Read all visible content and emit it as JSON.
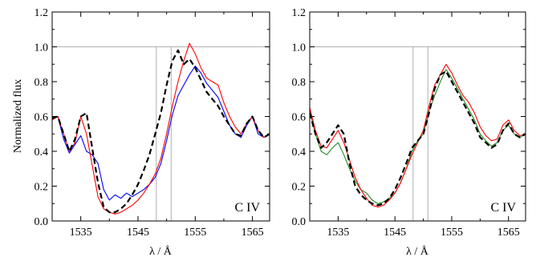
{
  "chart_data": [
    {
      "type": "line",
      "panel": "left",
      "xlabel": "λ / Å",
      "ylabel": "Normalized flux",
      "annotation": "C IV",
      "xlim": [
        1530,
        1568
      ],
      "ylim": [
        0.0,
        1.2
      ],
      "xticks": [
        1535,
        1545,
        1555,
        1565
      ],
      "yticks": [
        0.0,
        0.2,
        0.4,
        0.6,
        0.8,
        1.0,
        1.2
      ],
      "reference_line_y": 1.0,
      "vertical_lines_x": [
        1548.2,
        1550.8
      ],
      "series": [
        {
          "color": "#0000ff",
          "style": "solid",
          "x": [
            1530,
            1531,
            1532,
            1533,
            1534,
            1535,
            1536,
            1537,
            1538,
            1539,
            1540,
            1541,
            1542,
            1543,
            1544,
            1545,
            1546,
            1547,
            1548,
            1549,
            1550,
            1551,
            1552,
            1553,
            1554,
            1555,
            1556,
            1557,
            1558,
            1559,
            1560,
            1561,
            1562,
            1563,
            1564,
            1565,
            1566,
            1567,
            1568
          ],
          "y": [
            0.6,
            0.6,
            0.47,
            0.39,
            0.44,
            0.49,
            0.4,
            0.38,
            0.33,
            0.18,
            0.12,
            0.15,
            0.13,
            0.16,
            0.14,
            0.16,
            0.18,
            0.21,
            0.25,
            0.33,
            0.46,
            0.61,
            0.72,
            0.78,
            0.84,
            0.89,
            0.85,
            0.79,
            0.75,
            0.71,
            0.63,
            0.55,
            0.5,
            0.48,
            0.55,
            0.6,
            0.5,
            0.48,
            0.5
          ]
        },
        {
          "color": "#ff0000",
          "style": "solid",
          "x": [
            1530,
            1531,
            1532,
            1533,
            1534,
            1535,
            1536,
            1537,
            1538,
            1539,
            1540,
            1541,
            1542,
            1543,
            1544,
            1545,
            1546,
            1547,
            1548,
            1549,
            1550,
            1551,
            1552,
            1553,
            1554,
            1555,
            1556,
            1557,
            1558,
            1559,
            1560,
            1561,
            1562,
            1563,
            1564,
            1565,
            1566,
            1567,
            1568
          ],
          "y": [
            0.58,
            0.6,
            0.5,
            0.4,
            0.45,
            0.6,
            0.5,
            0.32,
            0.14,
            0.07,
            0.05,
            0.04,
            0.05,
            0.07,
            0.09,
            0.12,
            0.16,
            0.21,
            0.27,
            0.36,
            0.5,
            0.66,
            0.8,
            0.92,
            1.02,
            0.96,
            0.88,
            0.82,
            0.8,
            0.78,
            0.68,
            0.6,
            0.54,
            0.5,
            0.56,
            0.6,
            0.52,
            0.48,
            0.5
          ]
        },
        {
          "color": "#000000",
          "style": "dashed",
          "x": [
            1530,
            1531,
            1532,
            1533,
            1534,
            1535,
            1536,
            1537,
            1538,
            1539,
            1540,
            1541,
            1542,
            1543,
            1544,
            1545,
            1546,
            1547,
            1548,
            1549,
            1550,
            1551,
            1552,
            1553,
            1554,
            1555,
            1556,
            1557,
            1558,
            1559,
            1560,
            1561,
            1562,
            1563,
            1564,
            1565,
            1566,
            1567,
            1568
          ],
          "y": [
            0.59,
            0.6,
            0.5,
            0.4,
            0.47,
            0.6,
            0.62,
            0.42,
            0.22,
            0.08,
            0.05,
            0.05,
            0.07,
            0.1,
            0.15,
            0.21,
            0.29,
            0.38,
            0.5,
            0.62,
            0.78,
            0.92,
            0.98,
            0.9,
            0.93,
            0.88,
            0.81,
            0.74,
            0.7,
            0.66,
            0.6,
            0.55,
            0.5,
            0.49,
            0.56,
            0.6,
            0.52,
            0.48,
            0.5
          ]
        }
      ]
    },
    {
      "type": "line",
      "panel": "right",
      "xlabel": "λ / Å",
      "ylabel": "",
      "annotation": "C IV",
      "xlim": [
        1530,
        1568
      ],
      "ylim": [
        0.0,
        1.2
      ],
      "xticks": [
        1535,
        1545,
        1555,
        1565
      ],
      "yticks": [
        0.0,
        0.2,
        0.4,
        0.6,
        0.8,
        1.0,
        1.2
      ],
      "reference_line_y": 1.0,
      "vertical_lines_x": [
        1548.2,
        1550.8
      ],
      "series": [
        {
          "color": "#228b22",
          "style": "solid",
          "x": [
            1530,
            1531,
            1532,
            1533,
            1534,
            1535,
            1536,
            1537,
            1538,
            1539,
            1540,
            1541,
            1542,
            1543,
            1544,
            1545,
            1546,
            1547,
            1548,
            1549,
            1550,
            1551,
            1552,
            1553,
            1554,
            1555,
            1556,
            1557,
            1558,
            1559,
            1560,
            1561,
            1562,
            1563,
            1564,
            1565,
            1566,
            1567,
            1568
          ],
          "y": [
            0.63,
            0.5,
            0.4,
            0.38,
            0.42,
            0.45,
            0.38,
            0.3,
            0.23,
            0.18,
            0.16,
            0.12,
            0.1,
            0.11,
            0.13,
            0.16,
            0.22,
            0.3,
            0.4,
            0.46,
            0.5,
            0.63,
            0.72,
            0.8,
            0.87,
            0.82,
            0.76,
            0.7,
            0.64,
            0.58,
            0.5,
            0.46,
            0.43,
            0.45,
            0.52,
            0.55,
            0.5,
            0.48,
            0.5
          ]
        },
        {
          "color": "#ff0000",
          "style": "solid",
          "x": [
            1530,
            1531,
            1532,
            1533,
            1534,
            1535,
            1536,
            1537,
            1538,
            1539,
            1540,
            1541,
            1542,
            1543,
            1544,
            1545,
            1546,
            1547,
            1548,
            1549,
            1550,
            1551,
            1552,
            1553,
            1554,
            1555,
            1556,
            1557,
            1558,
            1559,
            1560,
            1561,
            1562,
            1563,
            1564,
            1565,
            1566,
            1567,
            1568
          ],
          "y": [
            0.65,
            0.52,
            0.43,
            0.42,
            0.47,
            0.52,
            0.45,
            0.35,
            0.25,
            0.18,
            0.13,
            0.09,
            0.08,
            0.09,
            0.12,
            0.16,
            0.22,
            0.3,
            0.38,
            0.45,
            0.52,
            0.66,
            0.78,
            0.84,
            0.9,
            0.85,
            0.78,
            0.72,
            0.68,
            0.62,
            0.54,
            0.49,
            0.46,
            0.47,
            0.55,
            0.58,
            0.52,
            0.49,
            0.5
          ]
        },
        {
          "color": "#000000",
          "style": "dashed",
          "x": [
            1530,
            1531,
            1532,
            1533,
            1534,
            1535,
            1536,
            1537,
            1538,
            1539,
            1540,
            1541,
            1542,
            1543,
            1544,
            1545,
            1546,
            1547,
            1548,
            1549,
            1550,
            1551,
            1552,
            1553,
            1554,
            1555,
            1556,
            1557,
            1558,
            1559,
            1560,
            1561,
            1562,
            1563,
            1564,
            1565,
            1566,
            1567,
            1568
          ],
          "y": [
            0.62,
            0.5,
            0.42,
            0.45,
            0.5,
            0.55,
            0.5,
            0.33,
            0.2,
            0.15,
            0.12,
            0.1,
            0.09,
            0.1,
            0.13,
            0.18,
            0.25,
            0.33,
            0.42,
            0.46,
            0.5,
            0.62,
            0.76,
            0.84,
            0.86,
            0.8,
            0.74,
            0.68,
            0.62,
            0.56,
            0.48,
            0.45,
            0.42,
            0.44,
            0.52,
            0.56,
            0.5,
            0.48,
            0.5
          ]
        }
      ]
    }
  ]
}
